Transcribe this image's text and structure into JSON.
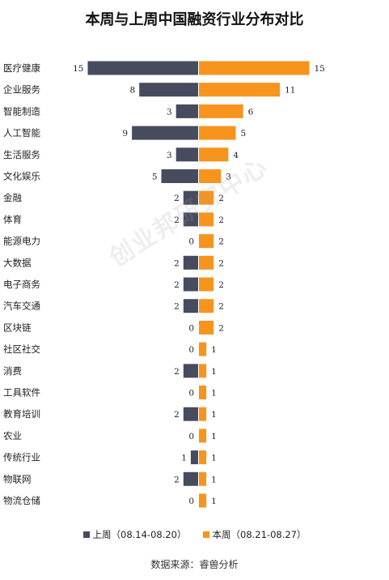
{
  "chart_data": {
    "type": "bar",
    "orientation": "diverging-horizontal",
    "title": "本周与上周中国融资行业分布对比",
    "categories": [
      "医疗健康",
      "企业服务",
      "智能制造",
      "人工智能",
      "生活服务",
      "文化娱乐",
      "金融",
      "体育",
      "能源电力",
      "大数据",
      "电子商务",
      "汽车交通",
      "区块链",
      "社区社交",
      "消费",
      "工具软件",
      "教育培训",
      "农业",
      "传统行业",
      "物联网",
      "物流仓储"
    ],
    "series": [
      {
        "name": "上周（08.14-08.20）",
        "color": "#474b5e",
        "side": "left",
        "values": [
          15,
          8,
          3,
          9,
          3,
          5,
          2,
          2,
          0,
          2,
          2,
          2,
          0,
          0,
          2,
          0,
          2,
          0,
          1,
          2,
          0
        ]
      },
      {
        "name": "本周（08.21-08.27）",
        "color": "#f7941d",
        "side": "right",
        "values": [
          15,
          11,
          6,
          5,
          4,
          3,
          2,
          2,
          2,
          2,
          2,
          2,
          2,
          1,
          1,
          1,
          1,
          1,
          1,
          1,
          1
        ]
      }
    ],
    "legend_position": "bottom",
    "grid": false
  },
  "source": "数据来源：睿兽分析",
  "watermark": "创业邦研究中心"
}
